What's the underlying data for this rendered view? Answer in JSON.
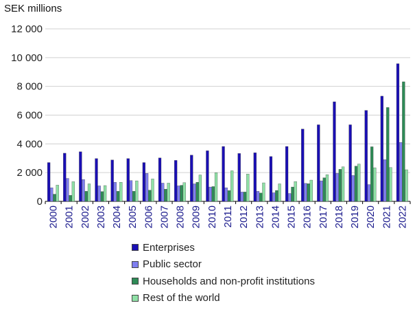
{
  "chart_data": {
    "type": "bar",
    "ylabel": "SEK millions",
    "ylim": [
      0,
      12000
    ],
    "yticks": [
      0,
      2000,
      4000,
      6000,
      8000,
      10000,
      12000
    ],
    "ytick_labels": [
      "0",
      "2 000",
      "4 000",
      "6 000",
      "8 000",
      "10 000",
      "12 000"
    ],
    "grid": true,
    "legend_position": "bottom",
    "categories": [
      "2000",
      "2001",
      "2002",
      "2003",
      "2004",
      "2005",
      "2006",
      "2007",
      "2008",
      "2009",
      "2010",
      "2011",
      "2012",
      "2013",
      "2014",
      "2015",
      "2016",
      "2017",
      "2018",
      "2019",
      "2020",
      "2021",
      "2022"
    ],
    "series": [
      {
        "name": "Enterprises",
        "color": "#1a0fb4",
        "values": [
          2700,
          3350,
          3450,
          2980,
          2880,
          2980,
          2700,
          3020,
          2850,
          3220,
          3520,
          3820,
          3330,
          3380,
          3120,
          3820,
          5030,
          5330,
          6930,
          5330,
          6330,
          7320,
          9580
        ]
      },
      {
        "name": "Public sector",
        "color": "#7f7fef",
        "values": [
          950,
          1600,
          1520,
          1080,
          1330,
          1450,
          1950,
          1270,
          1080,
          1220,
          1000,
          950,
          650,
          700,
          600,
          550,
          1250,
          1430,
          1950,
          1800,
          1170,
          2900,
          4100
        ]
      },
      {
        "name": "Households and non-profit institutions",
        "color": "#2e8b57",
        "values": [
          500,
          420,
          700,
          680,
          700,
          700,
          780,
          850,
          1120,
          1330,
          1030,
          750,
          650,
          580,
          760,
          1000,
          1230,
          1640,
          2230,
          2450,
          3800,
          6530,
          8320
        ]
      },
      {
        "name": "Rest of the world",
        "color": "#8fe0a6",
        "values": [
          1130,
          1370,
          1220,
          1100,
          1330,
          1430,
          1560,
          1270,
          1300,
          1840,
          2000,
          2130,
          1900,
          1290,
          1220,
          1380,
          1480,
          1860,
          2400,
          2600,
          2340,
          2350,
          2200
        ]
      }
    ]
  }
}
